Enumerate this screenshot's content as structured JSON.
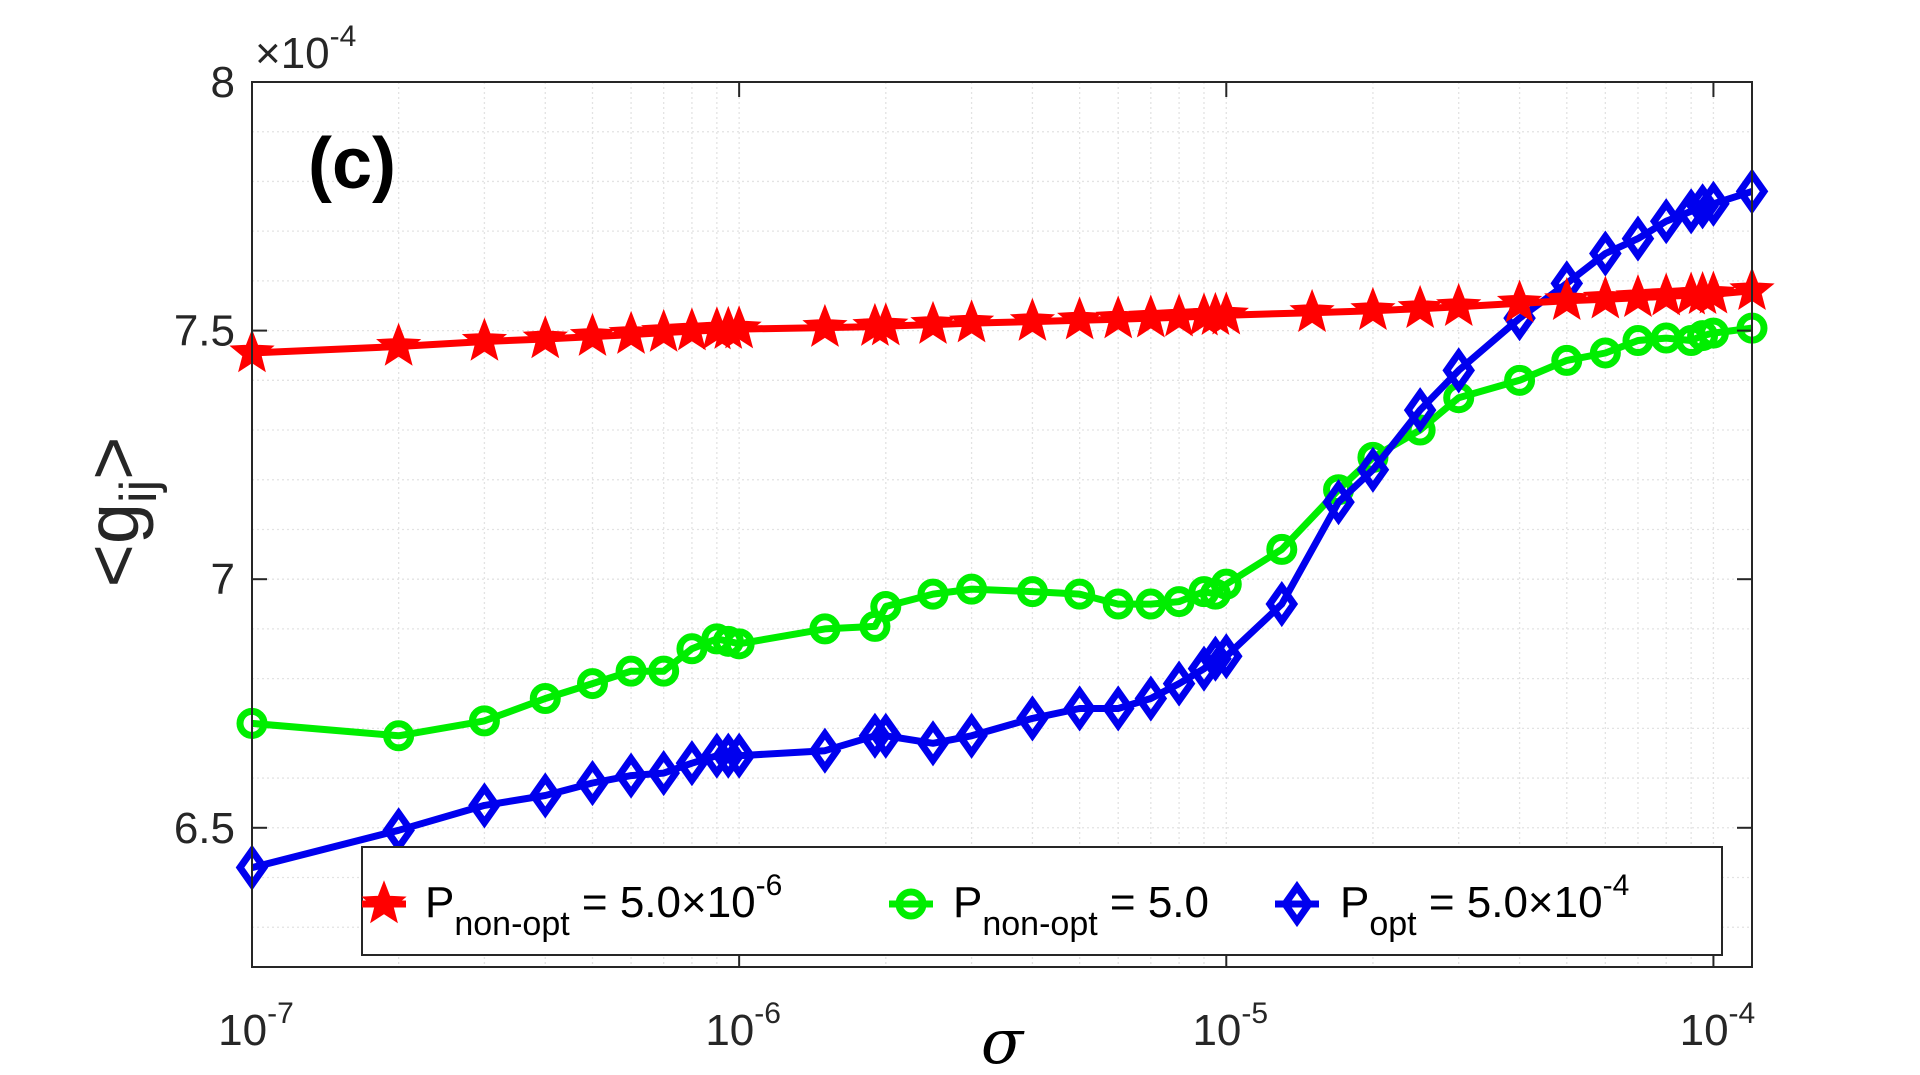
{
  "chart_data": {
    "type": "line",
    "x_scale": "log",
    "xlim": [
      1e-07,
      0.00012
    ],
    "ylim": [
      6.22,
      8.0
    ],
    "y_exponent_label": {
      "times": "×10",
      "power": "-4"
    },
    "panel_label": "(c)",
    "xlabel": "σ",
    "ylabel": {
      "open": "<g",
      "sub": "ij",
      "close": ">"
    },
    "x_ticks": [
      {
        "value": 1e-07,
        "base": "10",
        "power": "-7"
      },
      {
        "value": 1e-06,
        "base": "10",
        "power": "-6"
      },
      {
        "value": 1e-05,
        "base": "10",
        "power": "-5"
      },
      {
        "value": 0.0001,
        "base": "10",
        "power": "-4"
      }
    ],
    "y_ticks": [
      {
        "value": 6.5,
        "label": "6.5"
      },
      {
        "value": 7.0,
        "label": "7"
      },
      {
        "value": 7.5,
        "label": "7.5"
      },
      {
        "value": 8.0,
        "label": "8"
      }
    ],
    "grid": true,
    "legend_position": "bottom-center",
    "series": [
      {
        "name": "P_non-opt = 5.0×10^-6",
        "legend": {
          "main": "P",
          "sub": "non-opt",
          "rest": " = 5.0×10",
          "sup": "-6"
        },
        "color": "#ff0000",
        "marker": "star",
        "x": [
          1e-07,
          2e-07,
          3e-07,
          4e-07,
          5e-07,
          6e-07,
          7e-07,
          8e-07,
          9e-07,
          9.5e-07,
          1e-06,
          1.5e-06,
          1.9e-06,
          2e-06,
          2.5e-06,
          3e-06,
          4e-06,
          5e-06,
          6e-06,
          7e-06,
          8e-06,
          9e-06,
          9.5e-06,
          1e-05,
          1.5e-05,
          2e-05,
          2.5e-05,
          3e-05,
          4e-05,
          5e-05,
          6e-05,
          7e-05,
          8e-05,
          9e-05,
          9.5e-05,
          0.0001,
          0.00012
        ],
        "y": [
          7.455,
          7.468,
          7.478,
          7.483,
          7.488,
          7.492,
          7.496,
          7.499,
          7.501,
          7.502,
          7.503,
          7.506,
          7.508,
          7.509,
          7.512,
          7.515,
          7.518,
          7.521,
          7.523,
          7.525,
          7.527,
          7.529,
          7.53,
          7.531,
          7.536,
          7.54,
          7.544,
          7.548,
          7.555,
          7.56,
          7.563,
          7.566,
          7.569,
          7.571,
          7.572,
          7.573,
          7.58
        ]
      },
      {
        "name": "P_non-opt = 5.0",
        "legend": {
          "main": "P",
          "sub": "non-opt",
          "rest": " = 5.0",
          "sup": ""
        },
        "color": "#00ee00",
        "marker": "circle",
        "x": [
          1e-07,
          2e-07,
          3e-07,
          4e-07,
          5e-07,
          6e-07,
          7e-07,
          8e-07,
          9e-07,
          9.5e-07,
          1e-06,
          1.5e-06,
          1.9e-06,
          2e-06,
          2.5e-06,
          3e-06,
          4e-06,
          5e-06,
          6e-06,
          7e-06,
          8e-06,
          9e-06,
          9.5e-06,
          1e-05,
          1.3e-05,
          1.7e-05,
          2e-05,
          2.5e-05,
          3e-05,
          4e-05,
          5e-05,
          6e-05,
          7e-05,
          8e-05,
          9e-05,
          9.5e-05,
          0.0001,
          0.00012
        ],
        "y": [
          6.71,
          6.685,
          6.715,
          6.76,
          6.79,
          6.815,
          6.815,
          6.86,
          6.88,
          6.875,
          6.87,
          6.9,
          6.905,
          6.945,
          6.97,
          6.98,
          6.975,
          6.97,
          6.95,
          6.95,
          6.955,
          6.975,
          6.97,
          6.99,
          7.06,
          7.18,
          7.245,
          7.3,
          7.365,
          7.4,
          7.44,
          7.455,
          7.48,
          7.485,
          7.48,
          7.49,
          7.495,
          7.505
        ]
      },
      {
        "name": "P_opt = 5.0×10^-4",
        "legend": {
          "main": "P",
          "sub": "opt",
          "rest": " = 5.0×10",
          "sup": "-4"
        },
        "color": "#0000ee",
        "marker": "diamond",
        "x": [
          1e-07,
          2e-07,
          3e-07,
          4e-07,
          5e-07,
          6e-07,
          7e-07,
          8e-07,
          9e-07,
          9.5e-07,
          1e-06,
          1.5e-06,
          1.9e-06,
          2e-06,
          2.5e-06,
          3e-06,
          4e-06,
          5e-06,
          6e-06,
          7e-06,
          8e-06,
          9e-06,
          9.5e-06,
          1e-05,
          1.3e-05,
          1.7e-05,
          2e-05,
          2.5e-05,
          3e-05,
          4e-05,
          5e-05,
          6e-05,
          7e-05,
          8e-05,
          9e-05,
          9.5e-05,
          0.0001,
          0.00012
        ],
        "y": [
          6.42,
          6.495,
          6.545,
          6.565,
          6.59,
          6.605,
          6.61,
          6.63,
          6.645,
          6.645,
          6.645,
          6.655,
          6.685,
          6.685,
          6.67,
          6.685,
          6.72,
          6.74,
          6.74,
          6.76,
          6.79,
          6.82,
          6.84,
          6.845,
          6.95,
          7.155,
          7.22,
          7.34,
          7.42,
          7.525,
          7.595,
          7.655,
          7.685,
          7.72,
          7.74,
          7.75,
          7.755,
          7.78
        ]
      }
    ]
  }
}
